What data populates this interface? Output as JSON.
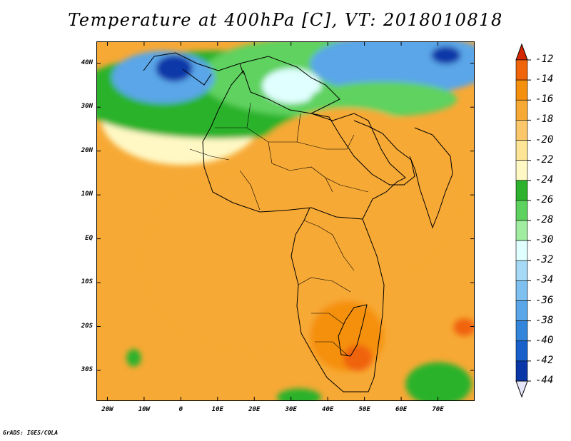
{
  "title": "Temperature at 400hPa [C], VT: 2018010818",
  "credit": "GrADS: IGES/COLA",
  "map": {
    "lon_range": [
      -23,
      80
    ],
    "lat_range": [
      -37,
      45
    ],
    "y_ticks": [
      {
        "label": "40N",
        "lat": 40
      },
      {
        "label": "30N",
        "lat": 30
      },
      {
        "label": "20N",
        "lat": 20
      },
      {
        "label": "10N",
        "lat": 10
      },
      {
        "label": "EQ",
        "lat": 0
      },
      {
        "label": "10S",
        "lat": -10
      },
      {
        "label": "20S",
        "lat": -20
      },
      {
        "label": "30S",
        "lat": -30
      }
    ],
    "x_ticks": [
      {
        "label": "20W",
        "lon": -20
      },
      {
        "label": "10W",
        "lon": -10
      },
      {
        "label": "0",
        "lon": 0
      },
      {
        "label": "10E",
        "lon": 10
      },
      {
        "label": "20E",
        "lon": 20
      },
      {
        "label": "30E",
        "lon": 30
      },
      {
        "label": "40E",
        "lon": 40
      },
      {
        "label": "50E",
        "lon": 50
      },
      {
        "label": "60E",
        "lon": 60
      },
      {
        "label": "70E",
        "lon": 70
      }
    ]
  },
  "colorbar": {
    "unit": "C",
    "labels": [
      "-12",
      "-14",
      "-16",
      "-18",
      "-20",
      "-22",
      "-24",
      "-26",
      "-28",
      "-30",
      "-32",
      "-34",
      "-36",
      "-38",
      "-40",
      "-42",
      "-44"
    ],
    "colors": [
      "#d52800",
      "#f0640a",
      "#f5900f",
      "#f7a935",
      "#fbc76a",
      "#fce596",
      "#fff8c4",
      "#2cb22c",
      "#5ed25e",
      "#a0eca0",
      "#e0ffff",
      "#a6d9f5",
      "#7ec0f0",
      "#5aa6e8",
      "#3385db",
      "#1760cc",
      "#0a37a8",
      "#0a1270"
    ]
  },
  "field_blobs": [
    {
      "lon": 0,
      "lat": 28,
      "rx": 22,
      "ry": 11,
      "value": -22
    },
    {
      "lon": 10,
      "lat": 33,
      "rx": 40,
      "ry": 10,
      "value": -24
    },
    {
      "lon": 35,
      "lat": 37,
      "rx": 30,
      "ry": 9,
      "value": -26
    },
    {
      "lon": -5,
      "lat": 37,
      "rx": 14,
      "ry": 6,
      "value": -36
    },
    {
      "lon": -2,
      "lat": 39,
      "rx": 5,
      "ry": 3,
      "value": -42
    },
    {
      "lon": 30,
      "lat": 35,
      "rx": 8,
      "ry": 4,
      "value": -30
    },
    {
      "lon": 60,
      "lat": 40,
      "rx": 25,
      "ry": 7,
      "value": -36
    },
    {
      "lon": 72,
      "lat": 42,
      "rx": 4,
      "ry": 2,
      "value": -42
    },
    {
      "lon": 55,
      "lat": 32,
      "rx": 20,
      "ry": 4,
      "value": -26
    },
    {
      "lon": 45,
      "lat": 10,
      "rx": 30,
      "ry": 20,
      "value": -17
    },
    {
      "lon": 20,
      "lat": -5,
      "rx": 30,
      "ry": 20,
      "value": -17
    },
    {
      "lon": 45,
      "lat": -22,
      "rx": 10,
      "ry": 8,
      "value": -14
    },
    {
      "lon": 48,
      "lat": -27,
      "rx": 4,
      "ry": 3,
      "value": -13
    },
    {
      "lon": 77,
      "lat": -20,
      "rx": 3,
      "ry": 2,
      "value": -13
    },
    {
      "lon": -13,
      "lat": -27,
      "rx": 2,
      "ry": 2,
      "value": -24
    },
    {
      "lon": 70,
      "lat": -33,
      "rx": 9,
      "ry": 5,
      "value": -24
    },
    {
      "lon": 32,
      "lat": -36,
      "rx": 6,
      "ry": 2,
      "value": -24
    },
    {
      "lon": 15,
      "lat": -5,
      "rx": 15,
      "ry": 12,
      "value": -16
    }
  ]
}
